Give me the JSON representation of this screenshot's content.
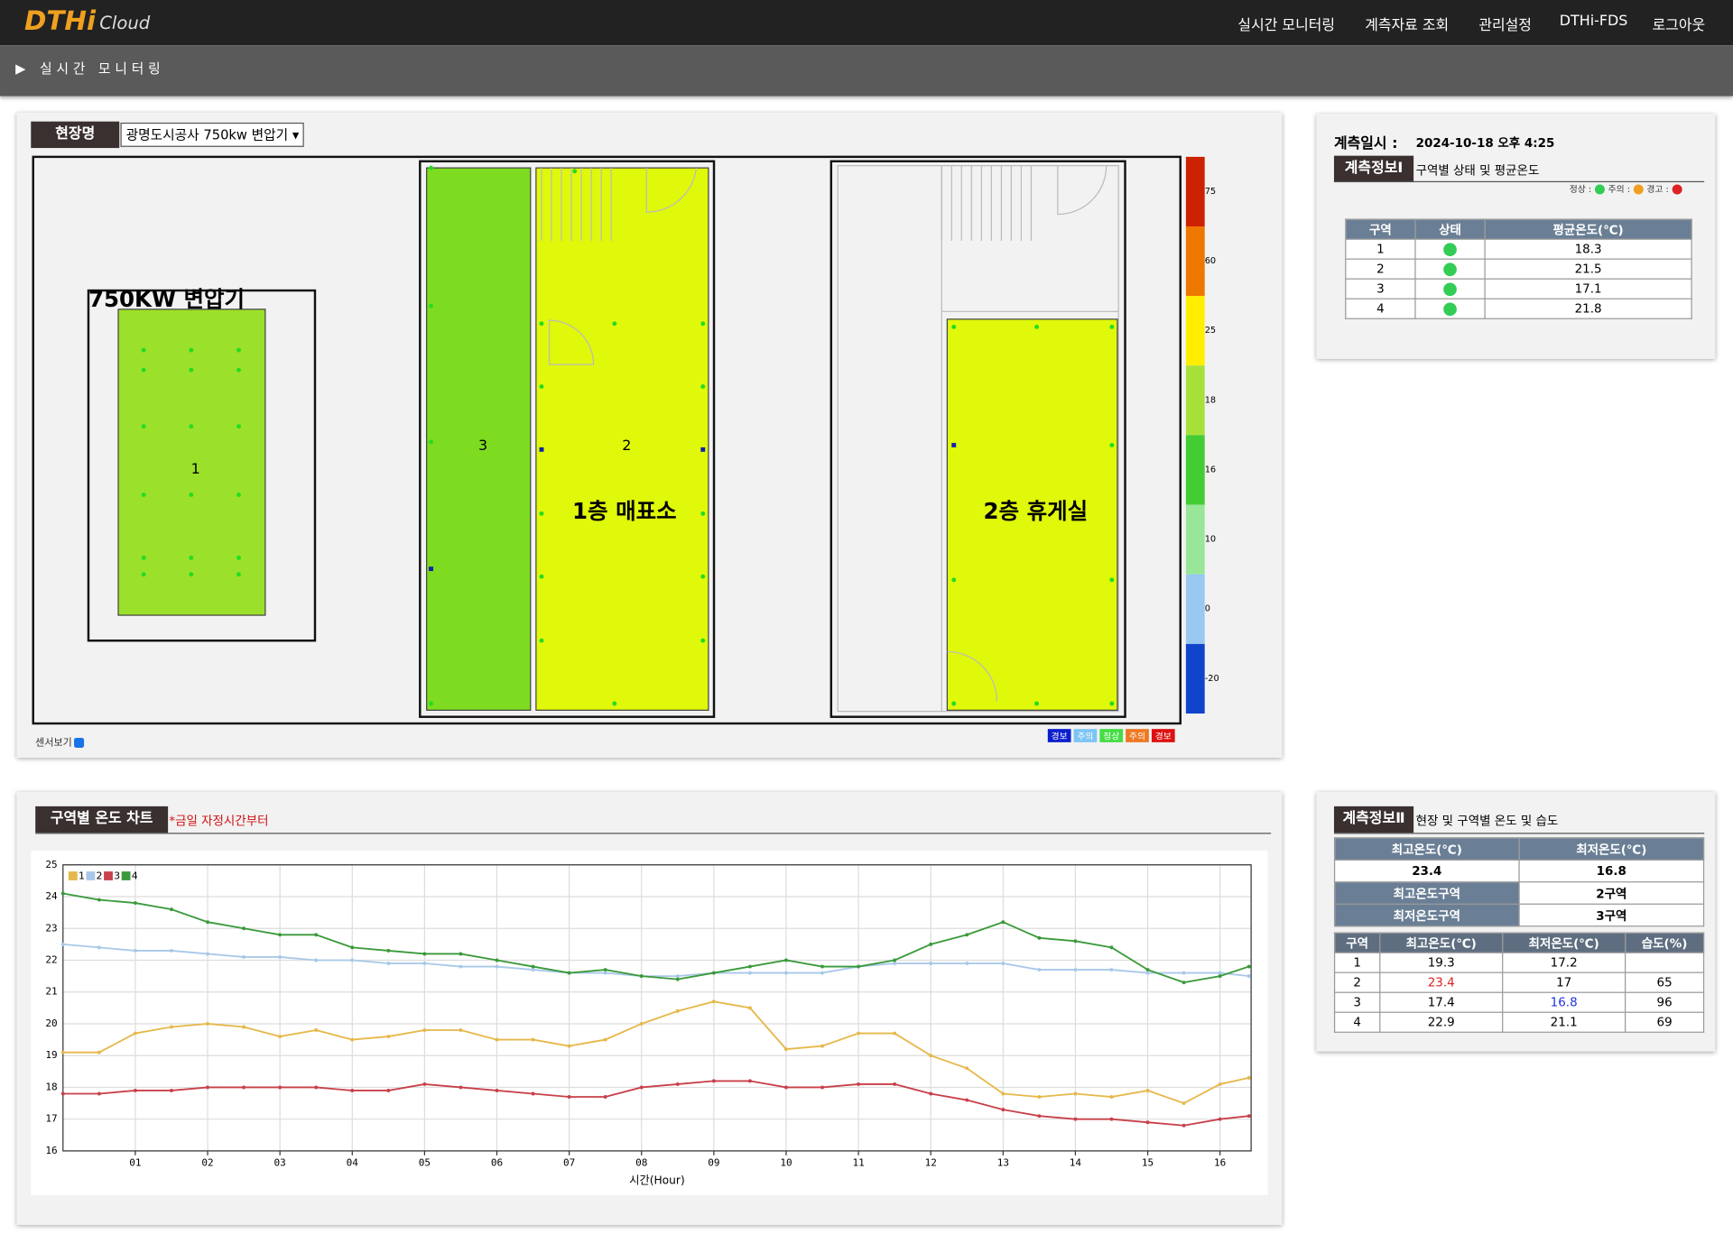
{
  "header": {
    "logo": "DTHi",
    "logo_sub": "Cloud",
    "menu": [
      "실시간 모니터링",
      "계측자료 조회",
      "관리설정",
      "DTHi-FDS",
      "로그아웃"
    ]
  },
  "breadcrumb": "실시간 모니터링",
  "site": {
    "label": "현장명",
    "selected": "광명도시공사 750kw 변압기"
  },
  "floor": {
    "transformer_title": "750KW 변압기",
    "room1_title": "1층 매표소",
    "room2_title": "2층 휴게실",
    "zones": [
      "1",
      "2",
      "3"
    ],
    "sensor_toggle": "센서보기",
    "color_scale": [
      {
        "label": "75",
        "color": "#cc2200"
      },
      {
        "label": "60",
        "color": "#ee7700"
      },
      {
        "label": "25",
        "color": "#ffee00"
      },
      {
        "label": "18",
        "color": "#a8e03a"
      },
      {
        "label": "16",
        "color": "#44cc33"
      },
      {
        "label": "10",
        "color": "#99e699"
      },
      {
        "label": "0",
        "color": "#99c8f0"
      },
      {
        "label": "-20",
        "color": "#1144cc"
      }
    ],
    "status_legend": [
      {
        "label": "경보",
        "color": "#0a1ecc"
      },
      {
        "label": "주의",
        "color": "#7cc4f4"
      },
      {
        "label": "정상",
        "color": "#44dd44"
      },
      {
        "label": "주의",
        "color": "#ee7722"
      },
      {
        "label": "경보",
        "color": "#dd1111"
      }
    ]
  },
  "info1": {
    "time_label": "계측일시 :",
    "time": "2024-10-18 오후 4:25",
    "tag": "계측정보Ⅰ",
    "title": "구역별 상태 및 평균온도",
    "legend": [
      "정상 :",
      "주의 :",
      "경고 :"
    ],
    "table": {
      "headers": [
        "구역",
        "상태",
        "평균온도(℃)"
      ],
      "rows": [
        [
          "1",
          "18.3"
        ],
        [
          "2",
          "21.5"
        ],
        [
          "3",
          "17.1"
        ],
        [
          "4",
          "21.8"
        ]
      ]
    }
  },
  "info2": {
    "tag": "계측정보Ⅱ",
    "title": "현장 및 구역별 온도 및 습도",
    "summary": {
      "headers": [
        "최고온도(℃)",
        "최저온도(℃)"
      ],
      "values": [
        "23.4",
        "16.8"
      ],
      "rows": [
        [
          "최고온도구역",
          "2구역"
        ],
        [
          "최저온도구역",
          "3구역"
        ]
      ]
    },
    "table": {
      "headers": [
        "구역",
        "최고온도(℃)",
        "최저온도(℃)",
        "습도(%)"
      ],
      "rows": [
        [
          "1",
          "19.3",
          "17.2",
          null
        ],
        [
          "2",
          "23.4",
          "17",
          "65"
        ],
        [
          "3",
          "17.4",
          "16.8",
          "96"
        ],
        [
          "4",
          "22.9",
          "21.1",
          "69"
        ]
      ]
    }
  },
  "chart_tag": "구역별 온도 차트",
  "chart_note": "*금일 자정시간부터",
  "chart_data": {
    "type": "line",
    "xlabel": "시간(Hour)",
    "x": [
      0,
      0.5,
      1,
      1.5,
      2,
      2.5,
      3,
      3.5,
      4,
      4.5,
      5,
      5.5,
      6,
      6.5,
      7,
      7.5,
      8,
      8.5,
      9,
      9.5,
      10,
      10.5,
      11,
      11.5,
      12,
      12.5,
      13,
      13.5,
      14,
      14.5,
      15,
      15.5,
      16,
      16.4
    ],
    "series": [
      {
        "name": "1",
        "color": "#e6b84a",
        "values": [
          19.1,
          19.1,
          19.7,
          19.9,
          20.0,
          19.9,
          19.6,
          19.8,
          19.5,
          19.6,
          19.8,
          19.8,
          19.5,
          19.5,
          19.3,
          19.5,
          20.0,
          20.4,
          20.7,
          20.5,
          19.2,
          19.3,
          19.7,
          19.7,
          19.0,
          18.6,
          17.8,
          17.7,
          17.8,
          17.7,
          17.9,
          17.5,
          18.1,
          18.3
        ]
      },
      {
        "name": "2",
        "color": "#a8c8e8",
        "values": [
          22.5,
          22.4,
          22.3,
          22.3,
          22.2,
          22.1,
          22.1,
          22.0,
          22.0,
          21.9,
          21.9,
          21.8,
          21.8,
          21.7,
          21.6,
          21.6,
          21.5,
          21.5,
          21.6,
          21.6,
          21.6,
          21.6,
          21.8,
          21.9,
          21.9,
          21.9,
          21.9,
          21.7,
          21.7,
          21.7,
          21.6,
          21.6,
          21.6,
          21.5
        ]
      },
      {
        "name": "3",
        "color": "#c8404a",
        "values": [
          17.8,
          17.8,
          17.9,
          17.9,
          18.0,
          18.0,
          18.0,
          18.0,
          17.9,
          17.9,
          18.1,
          18.0,
          17.9,
          17.8,
          17.7,
          17.7,
          18.0,
          18.1,
          18.2,
          18.2,
          18.0,
          18.0,
          18.1,
          18.1,
          17.8,
          17.6,
          17.3,
          17.1,
          17.0,
          17.0,
          16.9,
          16.8,
          17.0,
          17.1
        ]
      },
      {
        "name": "4",
        "color": "#3a9a3a",
        "values": [
          24.1,
          23.9,
          23.8,
          23.6,
          23.2,
          23.0,
          22.8,
          22.8,
          22.4,
          22.3,
          22.2,
          22.2,
          22.0,
          21.8,
          21.6,
          21.7,
          21.5,
          21.4,
          21.6,
          21.8,
          22.0,
          21.8,
          21.8,
          22.0,
          22.5,
          22.8,
          23.2,
          22.7,
          22.6,
          22.4,
          21.7,
          21.3,
          21.5,
          21.8
        ]
      }
    ],
    "xlim": [
      0,
      16.43
    ],
    "xticks": [
      {
        "value": 1,
        "label": "01"
      },
      {
        "value": 2,
        "label": "02"
      },
      {
        "value": 3,
        "label": "03"
      },
      {
        "value": 4,
        "label": "04"
      },
      {
        "value": 5,
        "label": "05"
      },
      {
        "value": 6,
        "label": "06"
      },
      {
        "value": 7,
        "label": "07"
      },
      {
        "value": 8,
        "label": "08"
      },
      {
        "value": 9,
        "label": "09"
      },
      {
        "value": 10,
        "label": "10"
      },
      {
        "value": 11,
        "label": "11"
      },
      {
        "value": 12,
        "label": "12"
      },
      {
        "value": 13,
        "label": "13"
      },
      {
        "value": 14,
        "label": "14"
      },
      {
        "value": 15,
        "label": "15"
      },
      {
        "value": 16,
        "label": "16"
      }
    ],
    "ylim": [
      16,
      25
    ],
    "yticks": [
      16,
      17,
      18,
      19,
      20,
      21,
      22,
      23,
      24,
      25
    ],
    "grid": true,
    "legend": "top-left"
  }
}
